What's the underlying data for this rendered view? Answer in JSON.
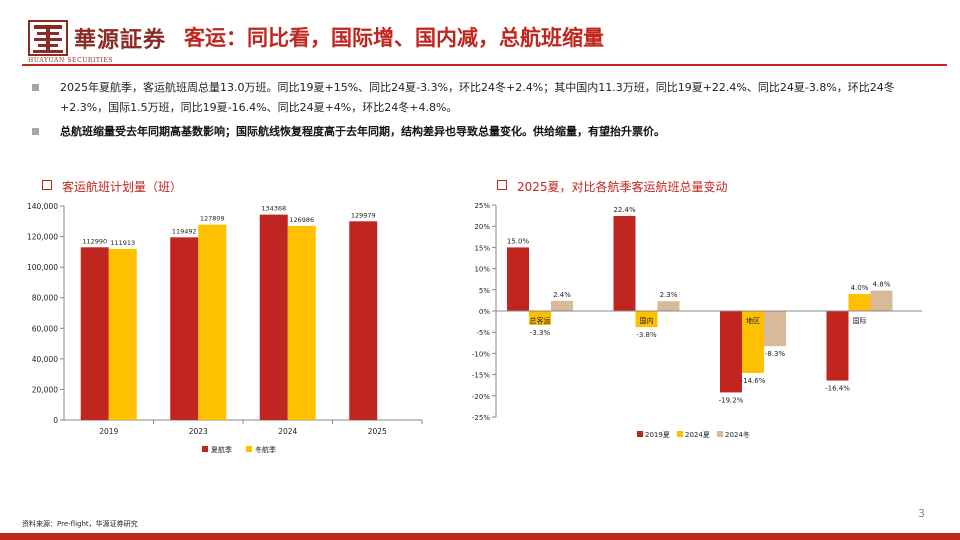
{
  "header": {
    "logo_cn": "華源証券",
    "logo_en": "HUAYUAN SECURITIES",
    "title": "客运：同比看，国际增、国内减，总航班缩量"
  },
  "bullets": [
    {
      "text": "2025年夏航季，客运航班周总量13.0万班。同比19夏+15%、同比24夏-3.3%，环比24冬+2.4%；其中国内11.3万班，同比19夏+22.4%、同比24夏-3.8%，环比24冬+2.3%，国际1.5万班，同比19夏-16.4%、同比24夏+4%，环比24冬+4.8%。"
    },
    {
      "text": "总航班缩量受去年同期高基数影响；国际航线恢复程度高于去年同期，结构差异也导致总量变化。供给缩量，有望抬升票价。"
    }
  ],
  "colors": {
    "red": "#c0261f",
    "yellow": "#ffc000",
    "tan": "#d8b998",
    "accent": "#c0261f"
  },
  "chart_data": [
    {
      "type": "bar",
      "title": "客运航班计划量（班）",
      "categories": [
        "2019",
        "2023",
        "2024",
        "2025"
      ],
      "series": [
        {
          "name": "夏航季",
          "color": "#c0261f",
          "values": [
            112990,
            119492,
            134368,
            129979
          ]
        },
        {
          "name": "冬航季",
          "color": "#ffc000",
          "values": [
            111913,
            127809,
            126986,
            null
          ]
        }
      ],
      "yticks": [
        "0",
        "20,000",
        "40,000",
        "60,000",
        "80,000",
        "100,000",
        "120,000",
        "140,000"
      ],
      "ylim": [
        0,
        140000
      ],
      "legend": "bottom"
    },
    {
      "type": "bar",
      "title": "2025夏，对比各航季客运航班总量变动",
      "categories": [
        "总客运",
        "国内",
        "地区",
        "国际"
      ],
      "series": [
        {
          "name": "2019夏",
          "color": "#c0261f",
          "values": [
            15.0,
            22.4,
            -19.2,
            -16.4
          ],
          "labels": [
            "15.0%",
            "22.4%",
            "-19.2%",
            "-16.4%"
          ]
        },
        {
          "name": "2024夏",
          "color": "#ffc000",
          "values": [
            -3.3,
            -3.8,
            -14.6,
            4.0
          ],
          "labels": [
            "-3.3%",
            "-3.8%",
            "-14.6%",
            "4.0%"
          ]
        },
        {
          "name": "2024冬",
          "color": "#d8b998",
          "values": [
            2.4,
            2.3,
            -8.3,
            4.8
          ],
          "labels": [
            "2.4%",
            "2.3%",
            "-8.3%",
            "4.8%"
          ]
        }
      ],
      "yticks": [
        "25%",
        "20%",
        "15%",
        "10%",
        "5%",
        "0%",
        "-5%",
        "-10%",
        "-15%",
        "-20%",
        "-25%"
      ],
      "ylim": [
        -25,
        25
      ],
      "legend": "bottom"
    }
  ],
  "footer": {
    "source": "资料来源：Pre-flight，华源证券研究",
    "page": "3"
  }
}
